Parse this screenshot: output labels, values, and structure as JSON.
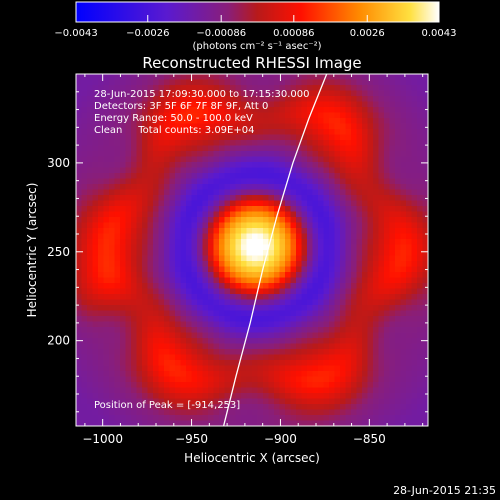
{
  "chart_data": {
    "type": "heatmap",
    "title": "Reconstructed RHESSI Image",
    "xlabel": "Heliocentric X (arcsec)",
    "ylabel": "Heliocentric Y (arcsec)",
    "xlim": [
      -1015,
      -817
    ],
    "ylim": [
      152,
      350
    ],
    "xticks": [
      -1000,
      -950,
      -900,
      -850
    ],
    "yticks": [
      200,
      250,
      300
    ],
    "colorbar": {
      "ticks": [
        "-0.0043",
        "-0.0026",
        "-0.00086",
        "0.00086",
        "0.0026",
        "0.0043"
      ],
      "range": [
        -0.0043,
        0.0043
      ],
      "units_label": "(photons cm⁻² s⁻¹ asec⁻²)",
      "colormap": "blue-purple-red-yellow-white"
    },
    "info_lines": [
      "28-Jun-2015 17:09:30.000 to 17:15:30.000",
      "Detectors: 3F 5F 6F 7F 8F 9F, Att 0",
      "Energy Range: 50.0 - 100.0 keV",
      "Clean     Total counts: 3.09E+04"
    ],
    "peak_label": "Position of Peak = [-914,253]",
    "peak": [
      -914,
      253
    ],
    "limb_curve": [
      [
        -932,
        152
      ],
      [
        -925,
        180
      ],
      [
        -917,
        210
      ],
      [
        -910,
        240
      ],
      [
        -902,
        270
      ],
      [
        -893,
        300
      ],
      [
        -884,
        325
      ],
      [
        -874,
        350
      ]
    ],
    "timestamp": "28-Jun-2015 21:35",
    "colors": {
      "background": "#000000",
      "foreground": "#ffffff"
    }
  }
}
